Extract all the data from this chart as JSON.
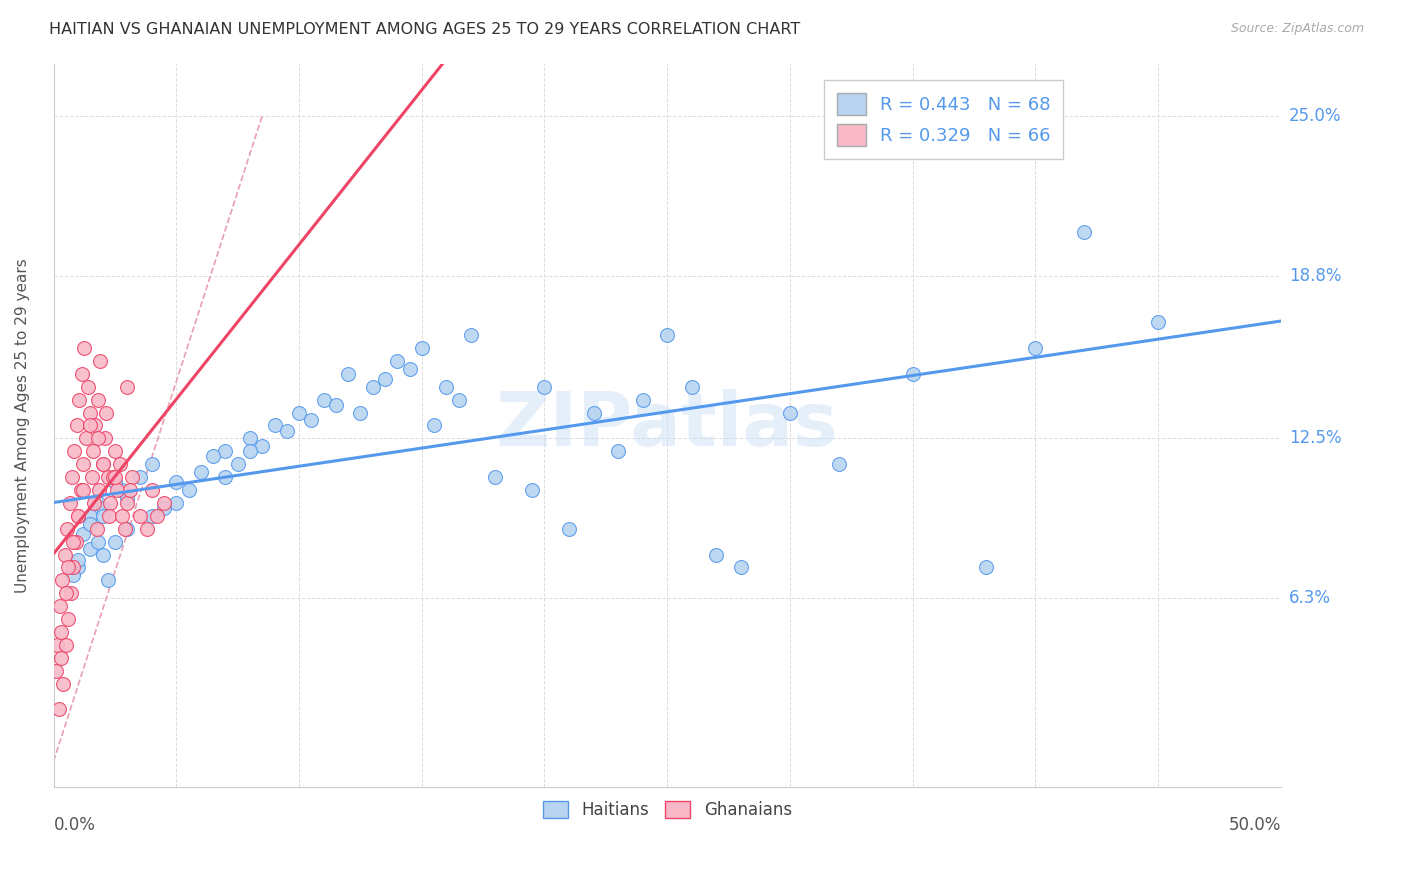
{
  "title": "HAITIAN VS GHANAIAN UNEMPLOYMENT AMONG AGES 25 TO 29 YEARS CORRELATION CHART",
  "source": "Source: ZipAtlas.com",
  "ylabel": "Unemployment Among Ages 25 to 29 years",
  "ytick_labels": [
    "6.3%",
    "12.5%",
    "18.8%",
    "25.0%"
  ],
  "ytick_values": [
    6.3,
    12.5,
    18.8,
    25.0
  ],
  "xmin": 0.0,
  "xmax": 50.0,
  "ymin": 0.0,
  "ymax": 27.0,
  "legend_line1": "R = 0.443   N = 68",
  "legend_line2": "R = 0.329   N = 66",
  "haitian_fill": "#b8d4f0",
  "ghanaian_fill": "#f8b8c8",
  "haitian_edge": "#5599ee",
  "ghanaian_edge": "#ee4466",
  "diagonal_color": "#ddaaaa",
  "watermark": "ZIPatlas",
  "haitian_x": [
    1.5,
    2.0,
    1.0,
    1.8,
    2.5,
    3.0,
    2.2,
    1.2,
    0.8,
    1.5,
    2.8,
    2.0,
    1.5,
    1.0,
    2.5,
    3.5,
    4.0,
    3.0,
    2.0,
    1.8,
    5.0,
    6.0,
    4.5,
    5.5,
    7.0,
    6.5,
    8.0,
    7.5,
    5.0,
    4.0,
    9.0,
    8.5,
    10.0,
    9.5,
    11.0,
    10.5,
    12.0,
    11.5,
    8.0,
    7.0,
    13.0,
    14.0,
    12.5,
    15.0,
    13.5,
    16.0,
    15.5,
    14.5,
    17.0,
    16.5,
    18.0,
    20.0,
    22.0,
    19.5,
    21.0,
    24.0,
    23.0,
    25.0,
    26.0,
    27.0,
    30.0,
    28.0,
    32.0,
    35.0,
    38.0,
    40.0,
    42.0,
    45.0
  ],
  "haitian_y": [
    9.5,
    8.0,
    7.5,
    10.0,
    8.5,
    9.0,
    7.0,
    8.8,
    7.2,
    9.2,
    10.5,
    9.8,
    8.2,
    7.8,
    10.8,
    11.0,
    11.5,
    10.2,
    9.5,
    8.5,
    10.0,
    11.2,
    9.8,
    10.5,
    12.0,
    11.8,
    12.5,
    11.5,
    10.8,
    9.5,
    13.0,
    12.2,
    13.5,
    12.8,
    14.0,
    13.2,
    15.0,
    13.8,
    12.0,
    11.0,
    14.5,
    15.5,
    13.5,
    16.0,
    14.8,
    14.5,
    13.0,
    15.2,
    16.5,
    14.0,
    11.0,
    14.5,
    13.5,
    10.5,
    9.0,
    14.0,
    12.0,
    16.5,
    14.5,
    8.0,
    13.5,
    7.5,
    11.5,
    15.0,
    7.5,
    16.0,
    20.5,
    17.0
  ],
  "ghanaian_x": [
    0.1,
    0.2,
    0.15,
    0.3,
    0.25,
    0.4,
    0.35,
    0.5,
    0.45,
    0.6,
    0.55,
    0.7,
    0.65,
    0.8,
    0.75,
    0.9,
    0.85,
    1.0,
    0.95,
    1.1,
    1.05,
    1.2,
    1.15,
    1.3,
    1.25,
    1.5,
    1.4,
    1.6,
    1.55,
    1.7,
    1.65,
    1.8,
    1.75,
    1.9,
    2.0,
    1.85,
    2.1,
    2.2,
    2.15,
    2.3,
    2.25,
    2.5,
    2.4,
    2.6,
    2.8,
    2.7,
    3.0,
    2.9,
    3.2,
    3.1,
    3.5,
    3.8,
    4.0,
    4.2,
    4.5,
    0.5,
    0.8,
    1.2,
    1.8,
    2.5,
    0.3,
    0.6,
    1.0,
    1.5,
    2.0,
    3.0
  ],
  "ghanaian_y": [
    3.5,
    2.0,
    4.5,
    5.0,
    6.0,
    3.0,
    7.0,
    4.5,
    8.0,
    5.5,
    9.0,
    6.5,
    10.0,
    7.5,
    11.0,
    8.5,
    12.0,
    9.5,
    13.0,
    10.5,
    14.0,
    11.5,
    15.0,
    12.5,
    16.0,
    13.5,
    14.5,
    12.0,
    11.0,
    13.0,
    10.0,
    14.0,
    9.0,
    15.5,
    11.5,
    10.5,
    12.5,
    11.0,
    13.5,
    10.0,
    9.5,
    12.0,
    11.0,
    10.5,
    9.5,
    11.5,
    10.0,
    9.0,
    11.0,
    10.5,
    9.5,
    9.0,
    10.5,
    9.5,
    10.0,
    6.5,
    8.5,
    10.5,
    12.5,
    11.0,
    4.0,
    7.5,
    9.5,
    13.0,
    11.5,
    14.5
  ]
}
